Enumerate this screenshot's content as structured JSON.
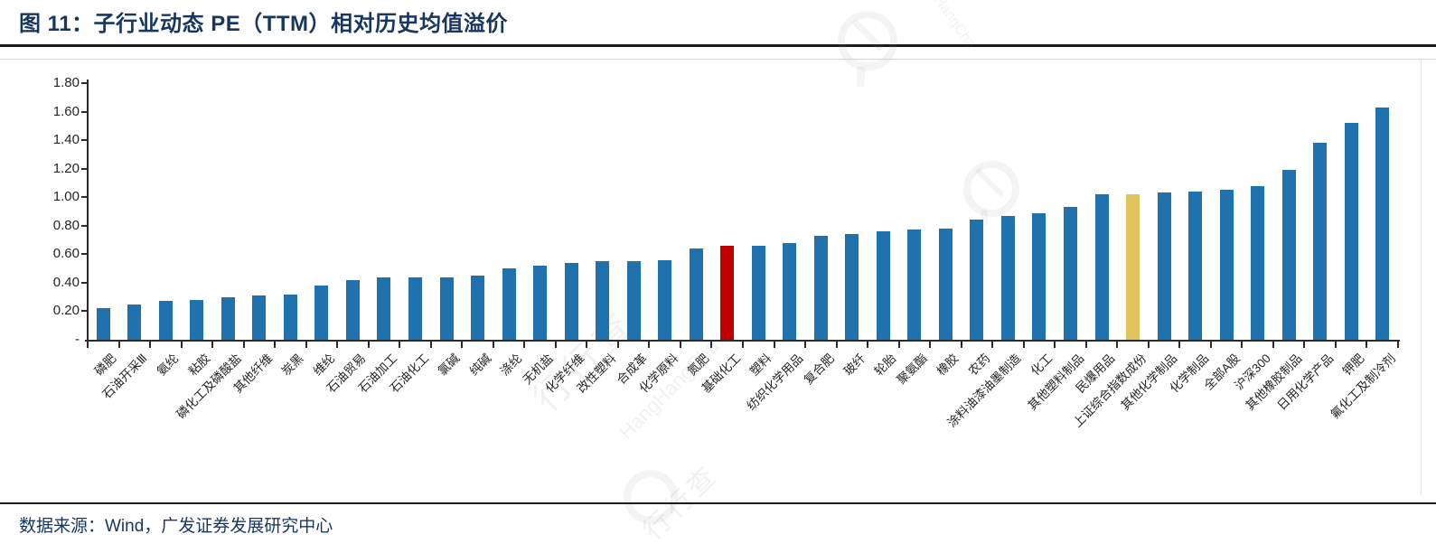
{
  "header": {
    "title": "图 11：子行业动态 PE（TTM）相对历史均值溢价"
  },
  "footer": {
    "source": "数据来源：Wind，广发证券发展研究中心"
  },
  "watermark": {
    "brand_cn": "行行查",
    "brand_en": "HangHangCha"
  },
  "chart_data": {
    "type": "bar",
    "title": "子行业动态 PE（TTM）相对历史均值溢价",
    "categories": [
      "磷肥",
      "石油开采Ⅲ",
      "氨纶",
      "粘胶",
      "磷化工及磷酸盐",
      "其他纤维",
      "炭黑",
      "维纶",
      "石油贸易",
      "石油加工",
      "石油化工",
      "氯碱",
      "纯碱",
      "涤纶",
      "无机盐",
      "化学纤维",
      "改性塑料",
      "合成革",
      "化学原料",
      "氮肥",
      "基础化工",
      "塑料",
      "纺织化学用品",
      "复合肥",
      "玻纤",
      "轮胎",
      "聚氨酯",
      "橡胶",
      "农药",
      "涂料油漆油墨制造",
      "化工",
      "其他塑料制品",
      "民爆用品",
      "上证综合指数成份",
      "其他化学制品",
      "化学制品",
      "全部A股",
      "沪深300",
      "其他橡胶制品",
      "日用化学产品",
      "钾肥",
      "氟化工及制冷剂"
    ],
    "values": [
      0.22,
      0.25,
      0.27,
      0.28,
      0.3,
      0.31,
      0.32,
      0.38,
      0.42,
      0.44,
      0.44,
      0.44,
      0.45,
      0.5,
      0.52,
      0.54,
      0.55,
      0.55,
      0.56,
      0.64,
      0.66,
      0.66,
      0.68,
      0.73,
      0.74,
      0.76,
      0.77,
      0.78,
      0.84,
      0.87,
      0.89,
      0.93,
      1.02,
      1.02,
      1.03,
      1.04,
      1.05,
      1.08,
      1.19,
      1.38,
      1.52,
      1.63
    ],
    "ylim": [
      0,
      1.8
    ],
    "ytick_labels": [
      "1.80",
      "1.60",
      "1.40",
      "1.20",
      "1.00",
      "0.80",
      "0.60",
      "0.40",
      "0.20",
      "-"
    ],
    "ytick_values": [
      1.8,
      1.6,
      1.4,
      1.2,
      1.0,
      0.8,
      0.6,
      0.4,
      0.2,
      0
    ],
    "grid": false,
    "legend": null,
    "colors": {
      "default": "#1F72AD",
      "highlight_red": "#C00000",
      "highlight_yellow": "#E2C45C",
      "axis": "#2b2b2b",
      "title_text": "#17375E"
    },
    "highlight_red_index": 20,
    "highlight_yellow_index": 33
  }
}
